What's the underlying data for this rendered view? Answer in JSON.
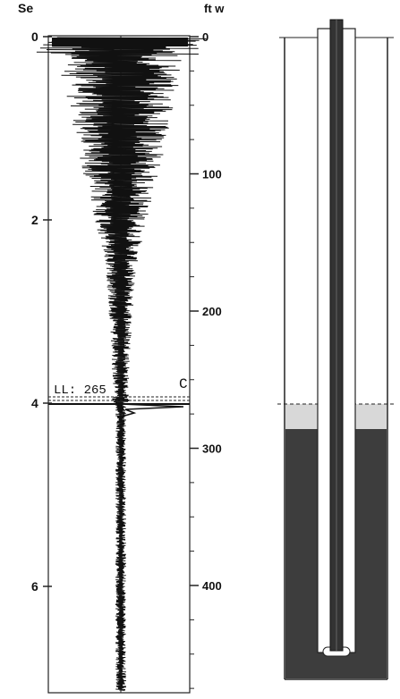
{
  "left_axis": {
    "unit_label": "Se",
    "ticks": [
      {
        "value": 0,
        "label": "0"
      },
      {
        "value": 2,
        "label": "2"
      },
      {
        "value": 4,
        "label": "4"
      },
      {
        "value": 6,
        "label": "6"
      }
    ]
  },
  "right_axis": {
    "unit_label": "ft w",
    "ticks": [
      {
        "value": 0,
        "label": "0"
      },
      {
        "value": 100,
        "label": "100"
      },
      {
        "value": 200,
        "label": "200"
      },
      {
        "value": 300,
        "label": "300"
      },
      {
        "value": 400,
        "label": "400"
      }
    ]
  },
  "liquid_level": {
    "label": "LL: 265",
    "value_ft": 265,
    "side_marker": "C"
  },
  "colors": {
    "trace": "#111111",
    "liquid": "#3d3d3d",
    "gap": "#d8d8d8",
    "tubing": "#333333",
    "outline": "#222222"
  }
}
